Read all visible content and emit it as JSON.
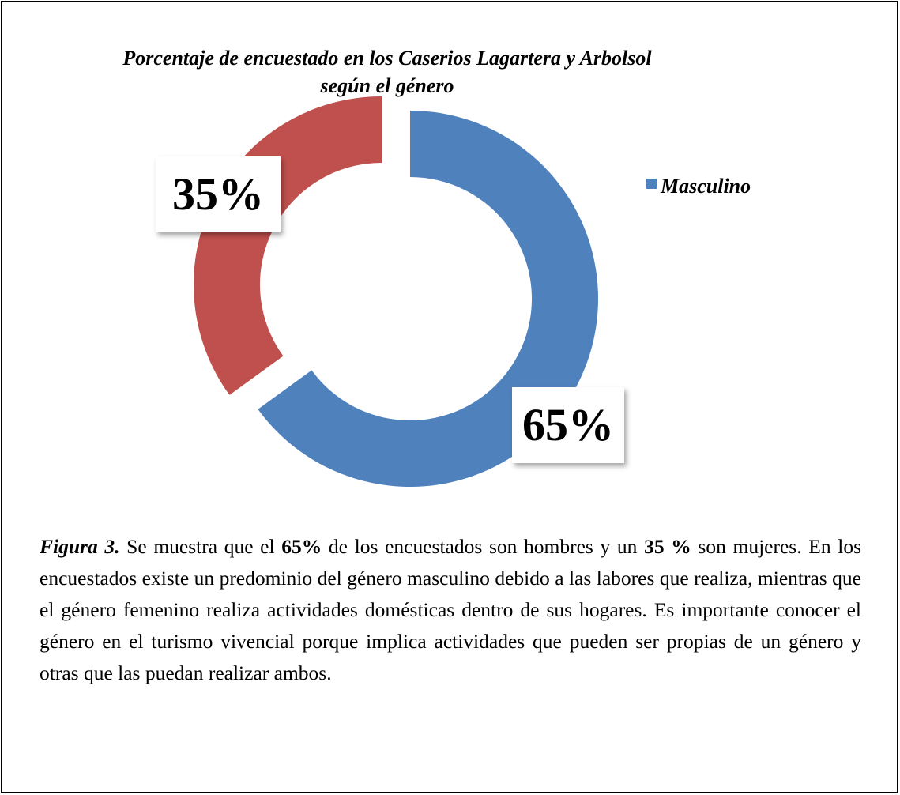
{
  "chart_data": {
    "type": "donut",
    "title": "Porcentaje de encuestado en los Caserios Lagartera y Arbolsol según el género",
    "categories": [
      "Masculino",
      null
    ],
    "values": [
      65,
      35
    ],
    "value_labels": [
      "65%",
      "35%"
    ],
    "colors": [
      "#4f81bd",
      "#c0504d"
    ]
  },
  "caption": [
    {
      "text": "Figura 3.",
      "style": "bold-italic"
    },
    {
      "text": " Se muestra que el "
    },
    {
      "text": "65%",
      "style": "bold"
    },
    {
      "text": " de los encuestados son hombres y un "
    },
    {
      "text": "35 %",
      "style": "bold"
    },
    {
      "text": " son mujeres. En los encuestados existe un predominio del género masculino debido a las labores que realiza, mientras que el género femenino realiza actividades domésticas dentro de sus hogares. Es importante conocer el género en el turismo vivencial porque implica actividades que pueden ser propias de un género y otras que las puedan realizar ambos."
    }
  ]
}
